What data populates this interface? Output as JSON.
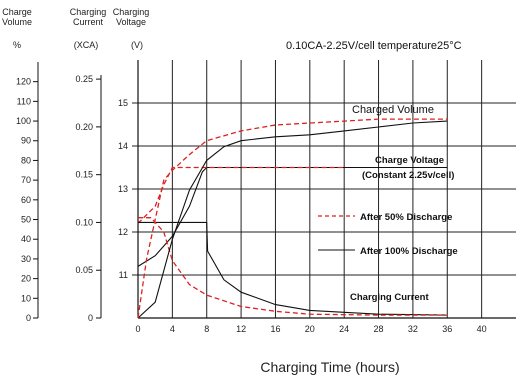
{
  "chart_data": {
    "type": "line",
    "title": "0.10CA-2.25V/cell   temperature25°C",
    "xlabel": "Charging Time (hours)",
    "xlim": [
      0,
      44
    ],
    "x_ticks": [
      "0",
      "4",
      "8",
      "12",
      "16",
      "20",
      "24",
      "28",
      "32",
      "36",
      "40"
    ],
    "grid": true,
    "axes": [
      {
        "name": "charge_volume",
        "header": [
          "Charge",
          "Volume"
        ],
        "unit": "%",
        "range": [
          0,
          131
        ],
        "ticks": [
          "0",
          "10",
          "20",
          "30",
          "40",
          "50",
          "60",
          "70",
          "80",
          "90",
          "100",
          "110",
          "120"
        ]
      },
      {
        "name": "charging_current",
        "header": [
          "Charging",
          "Current"
        ],
        "unit": "(XCA)",
        "range": [
          0,
          0.27
        ],
        "ticks": [
          "0",
          "0.05",
          "0.10",
          "0.15",
          "0.20",
          "0.25"
        ]
      },
      {
        "name": "charging_voltage",
        "header": [
          "Charging",
          "Voltage"
        ],
        "unit": "(V)",
        "range": [
          10,
          16
        ],
        "ticks": [
          "11",
          "12",
          "13",
          "14",
          "15"
        ]
      }
    ],
    "legend": [
      {
        "label": "After 50% Discharge",
        "style": "dashed",
        "color": "#dd2222"
      },
      {
        "label": "After 100% Discharge",
        "style": "solid",
        "color": "#111111"
      }
    ],
    "annotations": {
      "charged_volume": "Charged Volume",
      "charge_voltage": [
        "Charge Voltage",
        "(Constant 2.25v/cell)"
      ],
      "charging_current": "Charging Current"
    },
    "series": [
      {
        "name": "After 100% Discharge",
        "quantity": "voltage",
        "axis": "charging_voltage",
        "style": "solid",
        "x": [
          0,
          2,
          4,
          6,
          7.5,
          8,
          12,
          20,
          36
        ],
        "y": [
          11.2,
          11.45,
          11.9,
          12.6,
          13.4,
          13.5,
          13.5,
          13.5,
          13.5
        ]
      },
      {
        "name": "After 50% Discharge",
        "quantity": "voltage",
        "axis": "charging_voltage",
        "style": "dashed",
        "x": [
          0,
          1,
          2,
          3,
          4,
          6,
          8,
          12,
          20,
          24
        ],
        "y": [
          12.2,
          12.4,
          12.6,
          13.1,
          13.5,
          13.5,
          13.5,
          13.5,
          13.5,
          13.5
        ]
      },
      {
        "name": "After 100% Discharge",
        "quantity": "current",
        "axis": "charging_current",
        "style": "solid",
        "x": [
          0,
          8,
          8.1,
          10,
          12,
          16,
          20,
          28,
          36
        ],
        "y": [
          0.1,
          0.1,
          0.07,
          0.04,
          0.027,
          0.014,
          0.008,
          0.004,
          0.003
        ]
      },
      {
        "name": "After 50% Discharge",
        "quantity": "current",
        "axis": "charging_current",
        "style": "dashed",
        "x": [
          0,
          1.5,
          3,
          4,
          6,
          8,
          10,
          12,
          16,
          20,
          28,
          36
        ],
        "y": [
          0.105,
          0.105,
          0.09,
          0.06,
          0.035,
          0.024,
          0.018,
          0.012,
          0.007,
          0.004,
          0.003,
          0.003
        ]
      },
      {
        "name": "After 100% Discharge",
        "quantity": "charged volume",
        "axis": "charge_volume",
        "style": "solid",
        "x": [
          0,
          2,
          4,
          6,
          8,
          10,
          12,
          16,
          20,
          24,
          28,
          32,
          36
        ],
        "y": [
          0,
          8,
          40,
          65,
          80,
          87,
          90,
          92,
          93,
          95,
          97,
          99,
          100
        ]
      },
      {
        "name": "After 50% Discharge",
        "quantity": "charged volume",
        "axis": "charge_volume",
        "style": "dashed",
        "x": [
          0,
          1,
          2,
          3,
          4,
          6,
          8,
          12,
          16,
          20,
          24,
          28,
          32,
          36
        ],
        "y": [
          0,
          30,
          50,
          70,
          75,
          83,
          90,
          95,
          98,
          99,
          100,
          101,
          101,
          101
        ]
      }
    ]
  }
}
